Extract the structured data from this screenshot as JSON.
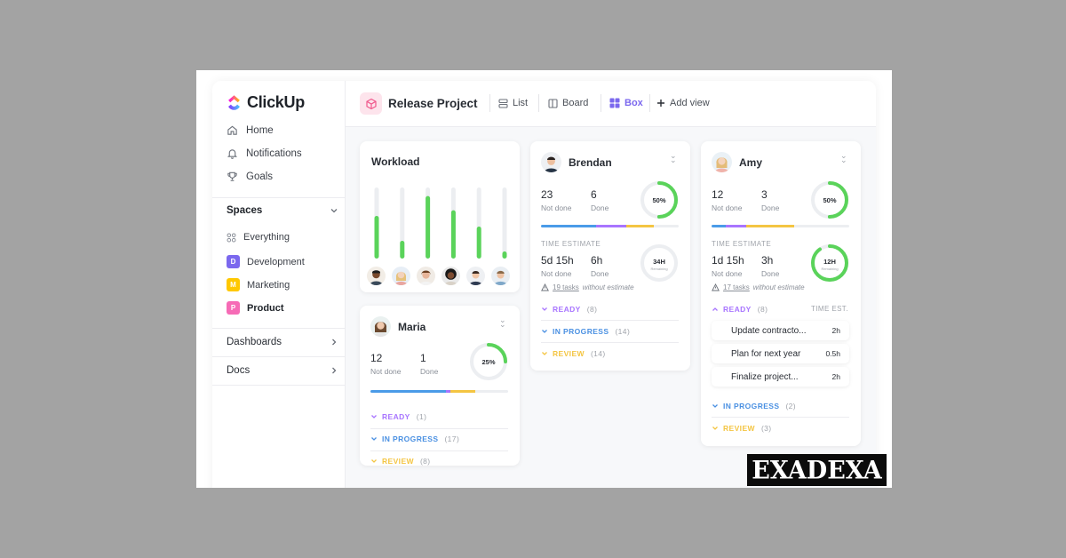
{
  "app": {
    "name": "ClickUp"
  },
  "sidebar": {
    "nav": [
      {
        "label": "Home",
        "icon": "home-icon"
      },
      {
        "label": "Notifications",
        "icon": "bell-icon"
      },
      {
        "label": "Goals",
        "icon": "trophy-icon"
      }
    ],
    "spaces_label": "Spaces",
    "everything_label": "Everything",
    "spaces": [
      {
        "badge": "D",
        "label": "Development",
        "color": "#7b68ee"
      },
      {
        "badge": "M",
        "label": "Marketing",
        "color": "#ffc800"
      },
      {
        "badge": "P",
        "label": "Product",
        "color": "#f66bb6"
      }
    ],
    "dashboards_label": "Dashboards",
    "docs_label": "Docs"
  },
  "header": {
    "project_title": "Release Project",
    "views": {
      "list": "List",
      "board": "Board",
      "box": "Box",
      "add": "Add view"
    },
    "active_view": "Box"
  },
  "workload": {
    "title": "Workload",
    "bars": [
      0.6,
      0.25,
      0.88,
      0.68,
      0.45,
      0.1
    ],
    "colors": {
      "fill": "#5ad35a",
      "track": "#eceef1"
    }
  },
  "people": {
    "brendan": {
      "name": "Brendan",
      "not_done": "23",
      "done": "6",
      "not_done_label": "Not done",
      "done_label": "Done",
      "progress": "50%",
      "progress_value": 0.5,
      "time_estimate_label": "TIME ESTIMATE",
      "time_not_done": "5d 15h",
      "time_done": "6h",
      "time_total": "34H",
      "time_total_sub": "Remaining",
      "time_value": 0.0,
      "warning_count": "19 tasks",
      "warning_text": "without estimate",
      "statuses": [
        {
          "label": "READY",
          "count": "(8)",
          "color": "#a875ff"
        },
        {
          "label": "IN PROGRESS",
          "count": "(14)",
          "color": "#4a90e2"
        },
        {
          "label": "REVIEW",
          "count": "(14)",
          "color": "#f4c542"
        }
      ]
    },
    "amy": {
      "name": "Amy",
      "not_done": "12",
      "done": "3",
      "not_done_label": "Not done",
      "done_label": "Done",
      "progress": "50%",
      "progress_value": 0.5,
      "time_estimate_label": "TIME ESTIMATE",
      "time_not_done": "1d 15h",
      "time_done": "3h",
      "time_total": "12H",
      "time_total_sub": "Remaining",
      "time_value": 0.9,
      "warning_count": "17 tasks",
      "warning_text": "without estimate",
      "ready": {
        "label": "READY",
        "count": "(8)",
        "col_label": "TIME EST."
      },
      "tasks": [
        {
          "name": "Update contracto...",
          "est": "2h"
        },
        {
          "name": "Plan for next year",
          "est": "0.5h"
        },
        {
          "name": "Finalize project...",
          "est": "2h"
        }
      ],
      "statuses": [
        {
          "label": "IN PROGRESS",
          "count": "(2)",
          "color": "#4a90e2"
        },
        {
          "label": "REVIEW",
          "count": "(3)",
          "color": "#f4c542"
        }
      ]
    },
    "maria": {
      "name": "Maria",
      "not_done": "12",
      "done": "1",
      "not_done_label": "Not done",
      "done_label": "Done",
      "progress": "25%",
      "progress_value": 0.25,
      "statuses": [
        {
          "label": "READY",
          "count": "(1)",
          "color": "#a875ff"
        },
        {
          "label": "IN PROGRESS",
          "count": "(17)",
          "color": "#4a90e2"
        },
        {
          "label": "REVIEW",
          "count": "(8)",
          "color": "#f4c542"
        }
      ]
    }
  },
  "colors": {
    "accent": "#7b68ee",
    "green": "#5ad35a",
    "ring_track": "#eceef1"
  },
  "watermark": {
    "text": "EXADEXA"
  }
}
